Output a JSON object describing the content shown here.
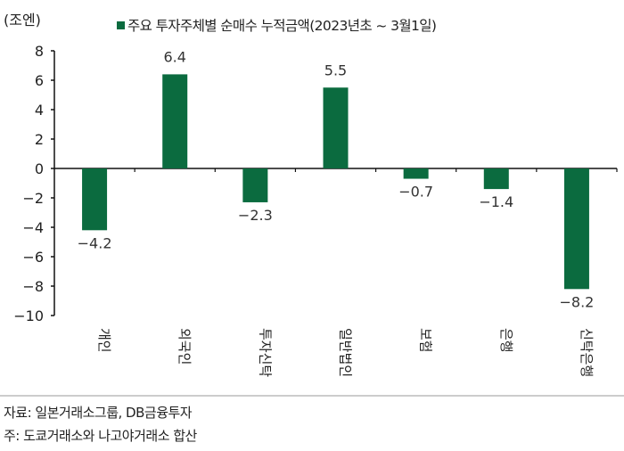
{
  "chart_data": {
    "type": "bar",
    "unit_label": "(조엔)",
    "legend": "주요 투자주체별 순매수 누적금액(2023년초 ~ 3월1일)",
    "legend_placement": "top",
    "categories": [
      "개인",
      "외국인",
      "투자신탁",
      "일반법인",
      "보험",
      "은행",
      "신탁은행"
    ],
    "series": [
      {
        "name": "주요 투자주체별 순매수 누적금액(2023년초 ~ 3월1일)",
        "values": [
          -4.2,
          6.4,
          -2.3,
          5.5,
          -0.7,
          -1.4,
          -8.2
        ]
      }
    ],
    "data_labels": [
      "-4.2",
      "6.4",
      "-2.3",
      "5.5",
      "-0.7",
      "-1.4",
      "-8.2"
    ],
    "ylim": [
      -10,
      8
    ],
    "yticks": [
      8,
      6,
      4,
      2,
      0,
      -2,
      -4,
      -6,
      -8,
      -10
    ],
    "ytick_labels": [
      "8",
      "6",
      "4",
      "2",
      "0",
      "−2",
      "−4",
      "−6",
      "−8",
      "−10"
    ],
    "grid": false,
    "color": "#0b6b3f"
  },
  "footer": {
    "source": "자료:  일본거래소그룹, DB금융투자",
    "note": "주:  도쿄거래소와 나고야거래소 합산"
  }
}
